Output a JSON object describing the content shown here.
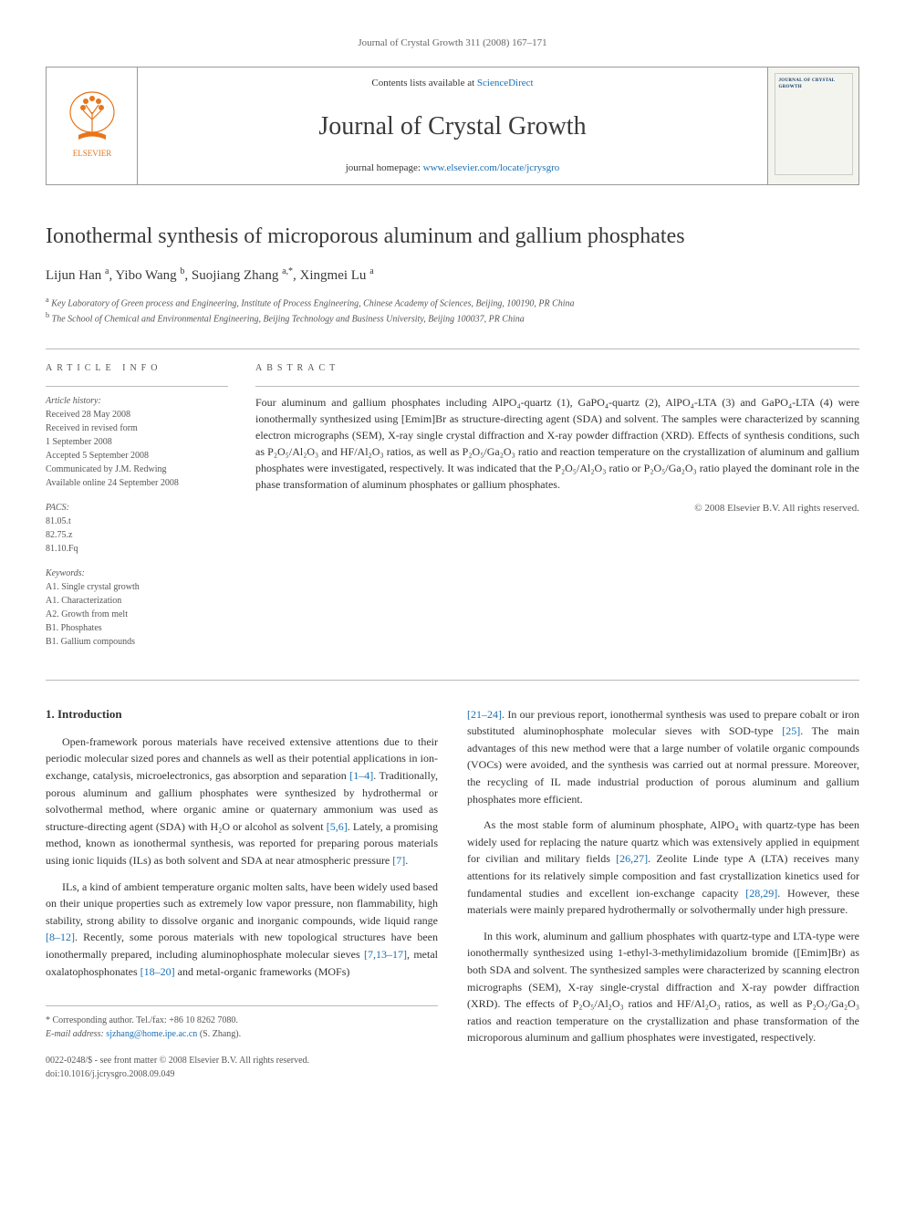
{
  "page_header": "Journal of Crystal Growth 311 (2008) 167–171",
  "banner": {
    "contents_prefix": "Contents lists available at ",
    "contents_link": "ScienceDirect",
    "journal_name": "Journal of Crystal Growth",
    "homepage_prefix": "journal homepage: ",
    "homepage_link": "www.elsevier.com/locate/jcrysgro",
    "cover_text": "JOURNAL OF CRYSTAL GROWTH"
  },
  "title": "Ionothermal synthesis of microporous aluminum and gallium phosphates",
  "authors_html": "Lijun Han <sup>a</sup>, Yibo Wang <sup>b</sup>, Suojiang Zhang <sup>a,*</sup>, Xingmei Lu <sup>a</sup>",
  "affiliations": {
    "a": "Key Laboratory of Green process and Engineering, Institute of Process Engineering, Chinese Academy of Sciences, Beijing, 100190, PR China",
    "b": "The School of Chemical and Environmental Engineering, Beijing Technology and Business University, Beijing 100037, PR China"
  },
  "info": {
    "head": "ARTICLE INFO",
    "history_label": "Article history:",
    "history": [
      "Received 28 May 2008",
      "Received in revised form",
      "1 September 2008",
      "Accepted 5 September 2008",
      "Communicated by J.M. Redwing",
      "Available online 24 September 2008"
    ],
    "pacs_label": "PACS:",
    "pacs": [
      "81.05.t",
      "82.75.z",
      "81.10.Fq"
    ],
    "keywords_label": "Keywords:",
    "keywords": [
      "A1. Single crystal growth",
      "A1. Characterization",
      "A2. Growth from melt",
      "B1. Phosphates",
      "B1. Gallium compounds"
    ]
  },
  "abstract": {
    "head": "ABSTRACT",
    "text": "Four aluminum and gallium phosphates including AlPO₄-quartz (1), GaPO₄-quartz (2), AlPO₄-LTA (3) and GaPO₄-LTA (4) were ionothermally synthesized using [Emim]Br as structure-directing agent (SDA) and solvent. The samples were characterized by scanning electron micrographs (SEM), X-ray single crystal diffraction and X-ray powder diffraction (XRD). Effects of synthesis conditions, such as P₂O₅/Al₂O₃ and HF/Al₂O₃ ratios, as well as P₂O₅/Ga₂O₃ ratio and reaction temperature on the crystallization of aluminum and gallium phosphates were investigated, respectively. It was indicated that the P₂O₅/Al₂O₃ ratio or P₂O₅/Ga₂O₃ ratio played the dominant role in the phase transformation of aluminum phosphates or gallium phosphates.",
    "copyright": "© 2008 Elsevier B.V. All rights reserved."
  },
  "section1": {
    "title": "1. Introduction",
    "p1": "Open-framework porous materials have received extensive attentions due to their periodic molecular sized pores and channels as well as their potential applications in ion-exchange, catalysis, microelectronics, gas absorption and separation [1–4]. Traditionally, porous aluminum and gallium phosphates were synthesized by hydrothermal or solvothermal method, where organic amine or quaternary ammonium was used as structure-directing agent (SDA) with H₂O or alcohol as solvent [5,6]. Lately, a promising method, known as ionothermal synthesis, was reported for preparing porous materials using ionic liquids (ILs) as both solvent and SDA at near atmospheric pressure [7].",
    "p2": "ILs, a kind of ambient temperature organic molten salts, have been widely used based on their unique properties such as extremely low vapor pressure, non flammability, high stability, strong ability to dissolve organic and inorganic compounds, wide liquid range [8–12]. Recently, some porous materials with new topological structures have been ionothermally prepared, including aluminophosphate molecular sieves [7,13–17], metal oxalatophosphonates [18–20] and metal-organic frameworks (MOFs)",
    "p3": "[21–24]. In our previous report, ionothermal synthesis was used to prepare cobalt or iron substituted aluminophosphate molecular sieves with SOD-type [25]. The main advantages of this new method were that a large number of volatile organic compounds (VOCs) were avoided, and the synthesis was carried out at normal pressure. Moreover, the recycling of IL made industrial production of porous aluminum and gallium phosphates more efficient.",
    "p4": "As the most stable form of aluminum phosphate, AlPO₄ with quartz-type has been widely used for replacing the nature quartz which was extensively applied in equipment for civilian and military fields [26,27]. Zeolite Linde type A (LTA) receives many attentions for its relatively simple composition and fast crystallization kinetics used for fundamental studies and excellent ion-exchange capacity [28,29]. However, these materials were mainly prepared hydrothermally or solvothermally under high pressure.",
    "p5": "In this work, aluminum and gallium phosphates with quartz-type and LTA-type were ionothermally synthesized using 1-ethyl-3-methylimidazolium bromide ([Emim]Br) as both SDA and solvent. The synthesized samples were characterized by scanning electron micrographs (SEM), X-ray single-crystal diffraction and X-ray powder diffraction (XRD). The effects of P₂O₅/Al₂O₃ ratios and HF/Al₂O₃ ratios, as well as P₂O₅/Ga₂O₃ ratios and reaction temperature on the crystallization and phase transformation of the microporous aluminum and gallium phosphates were investigated, respectively."
  },
  "footer": {
    "corr": "* Corresponding author. Tel./fax: +86 10 8262 7080.",
    "email_label": "E-mail address: ",
    "email": "sjzhang@home.ipe.ac.cn",
    "email_who": " (S. Zhang).",
    "issn": "0022-0248/$ - see front matter © 2008 Elsevier B.V. All rights reserved.",
    "doi": "doi:10.1016/j.jcrysgro.2008.09.049"
  }
}
